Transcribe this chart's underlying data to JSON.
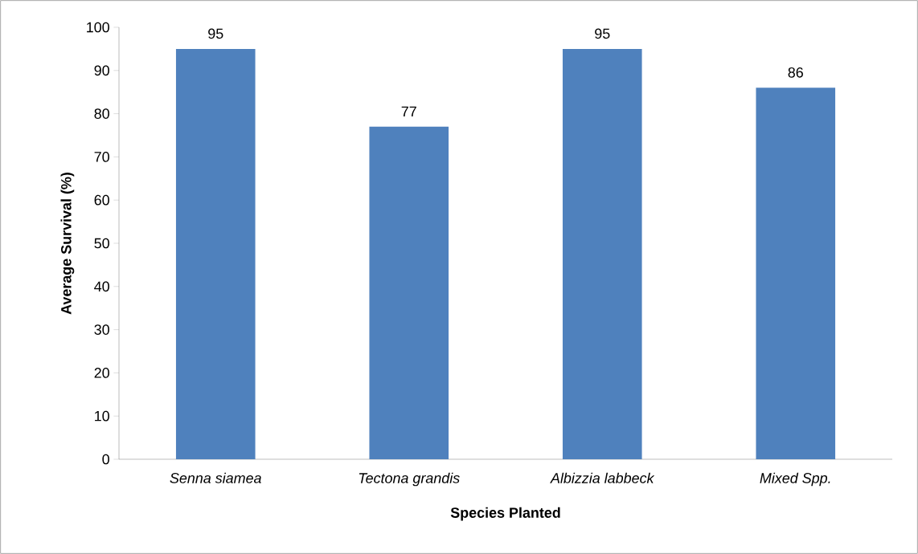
{
  "chart_data": {
    "type": "bar",
    "xlabel": "Species Planted",
    "ylabel": "Average  Survival  (%)",
    "categories": [
      "Senna siamea",
      "Tectona grandis",
      "Albizzia labbeck",
      "Mixed Spp."
    ],
    "values": [
      95,
      77,
      95,
      86
    ],
    "color": "#4f81bd",
    "data_labels": true,
    "ylim": [
      0,
      100
    ],
    "yticks": [
      0,
      10,
      20,
      30,
      40,
      50,
      60,
      70,
      80,
      90,
      100
    ],
    "grid": false
  }
}
